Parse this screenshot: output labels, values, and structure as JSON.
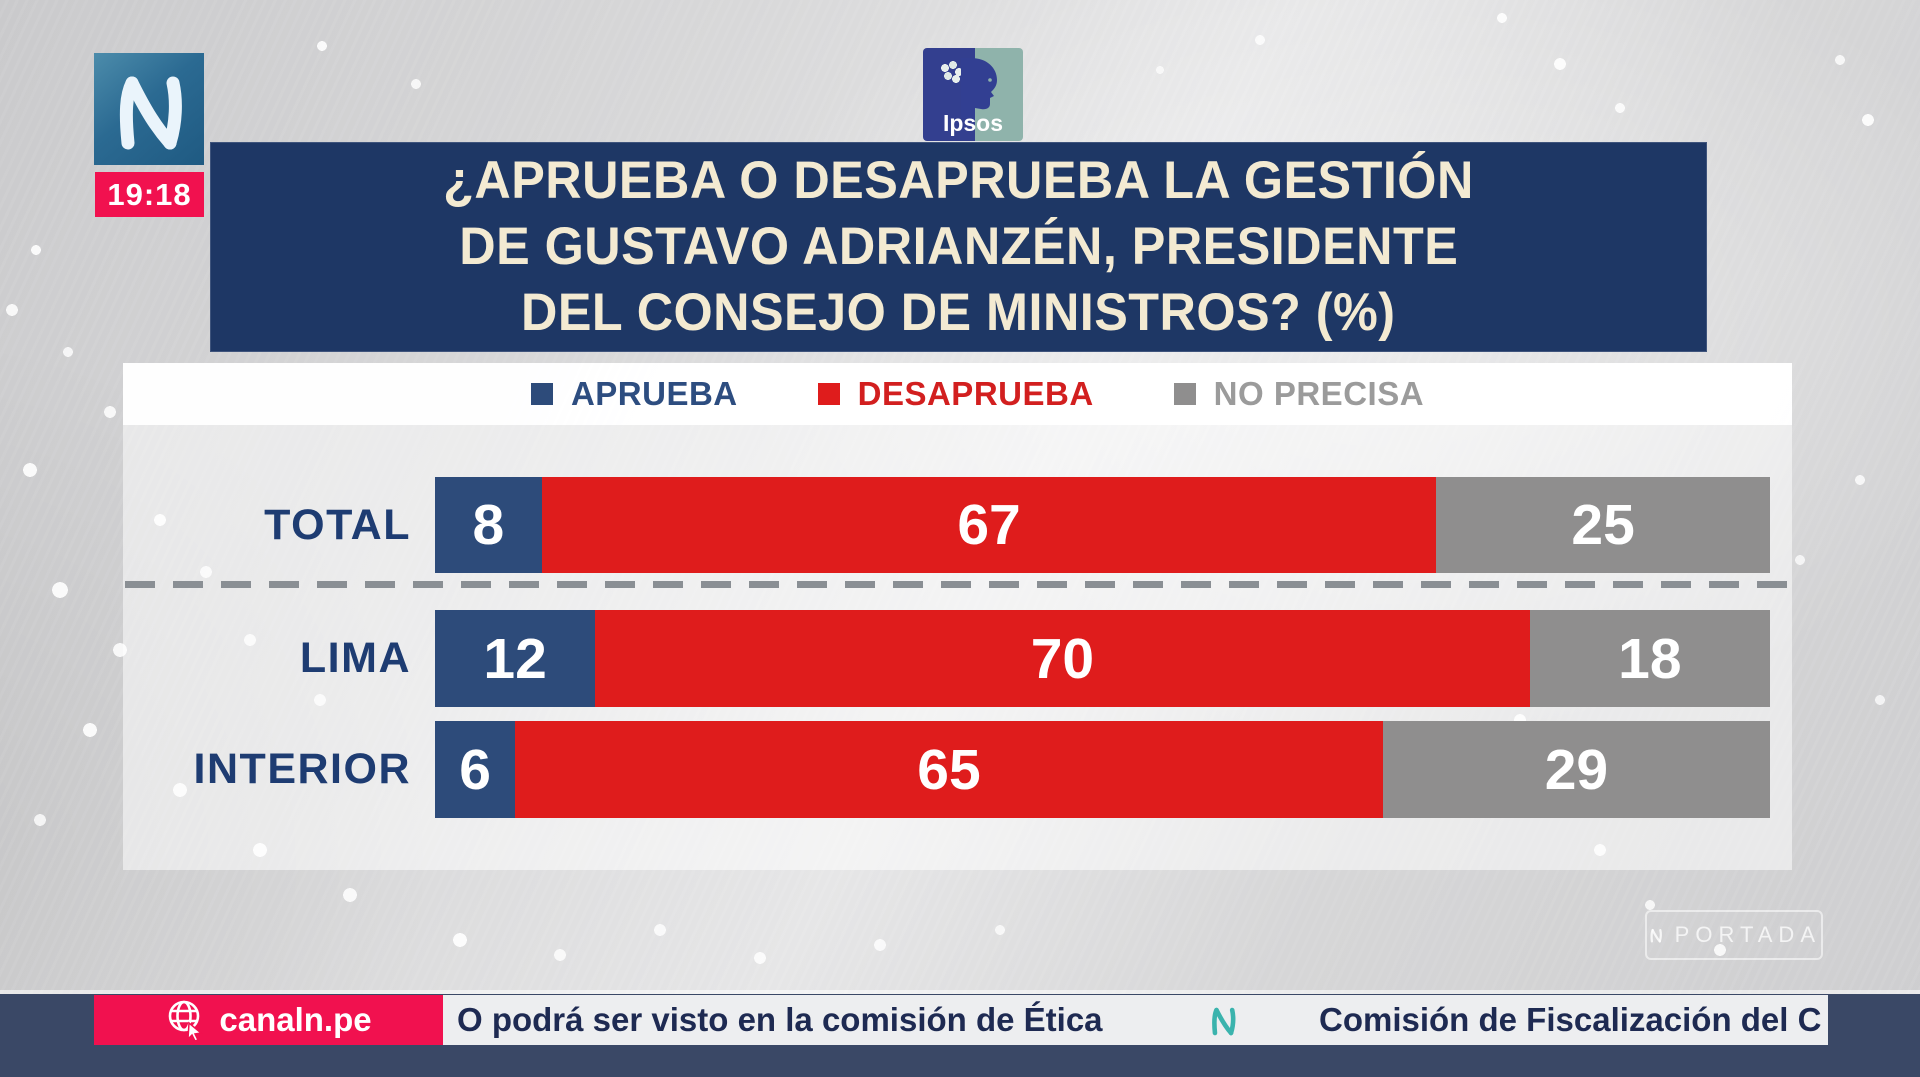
{
  "channel": {
    "name": "N",
    "time": "19:18",
    "website": "canaln.pe",
    "watermark_text": "PORTADA",
    "brand_pink": "#f1114f",
    "brand_teal": "#3ab3ad"
  },
  "source": {
    "name": "Ipsos"
  },
  "chart_data": {
    "type": "bar",
    "orientation": "horizontal-stacked",
    "title": "¿APRUEBA O DESAPRUEBA LA GESTIÓN DE GUSTAVO ADRIANZÉN, PRESIDENTE DEL CONSEJO DE MINISTROS? (%)",
    "title_lines": [
      "¿APRUEBA O DESAPRUEBA LA GESTIÓN",
      "DE GUSTAVO ADRIANZÉN, PRESIDENTE",
      "DEL CONSEJO DE MINISTROS? (%)"
    ],
    "value_unit": "%",
    "xlim": [
      0,
      100
    ],
    "legend_position": "top",
    "legend": [
      {
        "label": "APRUEBA",
        "color": "#2d4b7a",
        "text_color": "#2d4d80"
      },
      {
        "label": "DESAPRUEBA",
        "color": "#df1c1c",
        "text_color": "#d21f1f"
      },
      {
        "label": "NO PRECISA",
        "color": "#8f8e8e",
        "text_color": "#9b9b9b"
      }
    ],
    "categories": [
      "TOTAL",
      "LIMA",
      "INTERIOR"
    ],
    "series": [
      {
        "name": "APRUEBA",
        "values": [
          8,
          12,
          6
        ]
      },
      {
        "name": "DESAPRUEBA",
        "values": [
          67,
          70,
          65
        ]
      },
      {
        "name": "NO PRECISA",
        "values": [
          25,
          18,
          29
        ]
      }
    ]
  },
  "ticker": {
    "item1": "O podrá ser visto en la comisión de Ética",
    "item2": "Comisión de Fiscalización del C"
  }
}
